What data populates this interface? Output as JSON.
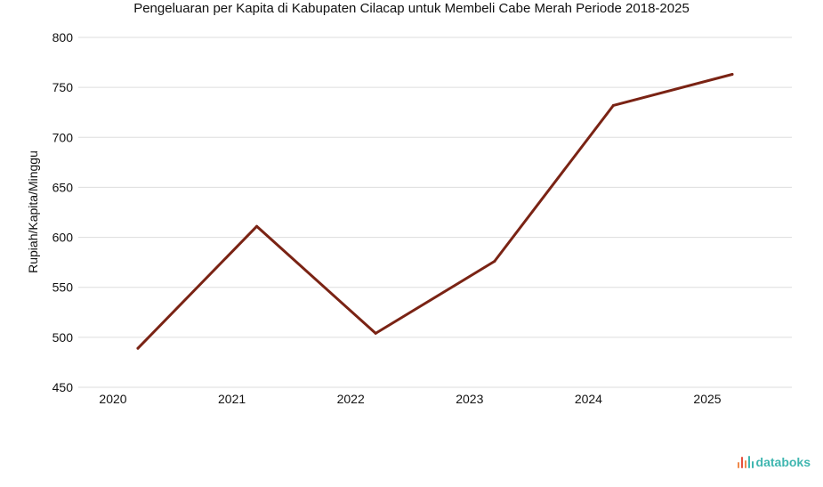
{
  "chart_data": {
    "type": "line",
    "title": "Pengeluaran per Kapita di Kabupaten Cilacap untuk Membeli Cabe Merah Periode 2018-2025",
    "xlabel": "",
    "ylabel": "Rupiah/Kapita/Minggu",
    "categories": [
      "2020",
      "2021",
      "2022",
      "2023",
      "2024",
      "2025"
    ],
    "series": [
      {
        "values": [
          489,
          611,
          504,
          576,
          732,
          763
        ],
        "color": "#7a2314"
      }
    ],
    "ylim": [
      450,
      800
    ],
    "yticks": [
      450,
      500,
      550,
      600,
      650,
      700,
      750,
      800
    ],
    "grid": true,
    "legend": "none"
  },
  "brand": {
    "name": "databoks",
    "color": "#3fb6b0",
    "icon": "databoks-bars-icon"
  }
}
